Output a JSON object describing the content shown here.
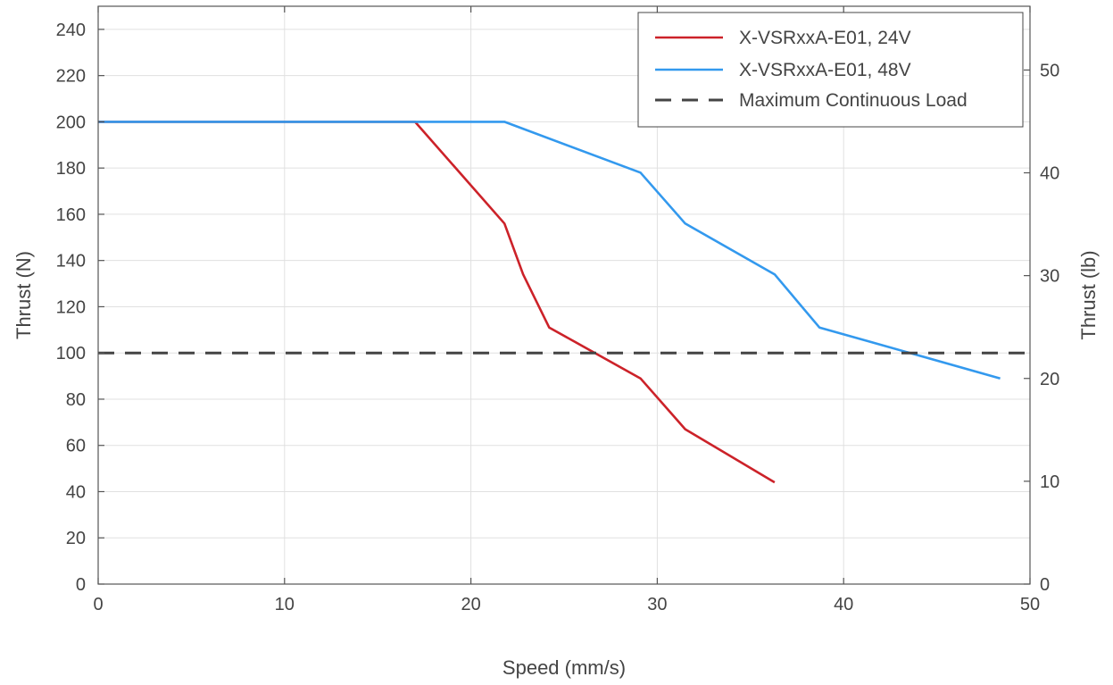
{
  "chart_data": {
    "type": "line",
    "xlabel": "Speed (mm/s)",
    "ylabel": "Thrust (N)",
    "y2label": "Thrust (lb)",
    "xlim": [
      0,
      50
    ],
    "ylim": [
      0,
      250
    ],
    "y2lim": [
      0,
      56.2
    ],
    "xticks": [
      0,
      10,
      20,
      30,
      40,
      50
    ],
    "yticks": [
      0,
      20,
      40,
      60,
      80,
      100,
      120,
      140,
      160,
      180,
      200,
      220,
      240
    ],
    "y2ticks": [
      0,
      10,
      20,
      30,
      40,
      50
    ],
    "grid": true,
    "legend_position": "top-right",
    "series": [
      {
        "name": "X-VSRxxA-E01, 24V",
        "color": "#cc2229",
        "style": "solid",
        "x": [
          0,
          17.0,
          21.8,
          22.8,
          24.2,
          29.1,
          31.5,
          36.3
        ],
        "y": [
          200,
          200,
          156,
          134,
          111,
          89,
          67,
          44
        ]
      },
      {
        "name": "X-VSRxxA-E01, 48V",
        "color": "#3399ee",
        "style": "solid",
        "x": [
          0,
          21.8,
          29.1,
          31.5,
          36.3,
          38.7,
          48.4
        ],
        "y": [
          200,
          200,
          178,
          156,
          134,
          111,
          89
        ]
      },
      {
        "name": "Maximum Continuous Load",
        "color": "#444444",
        "style": "dashed",
        "x": [
          0,
          50
        ],
        "y": [
          100,
          100
        ]
      }
    ]
  }
}
